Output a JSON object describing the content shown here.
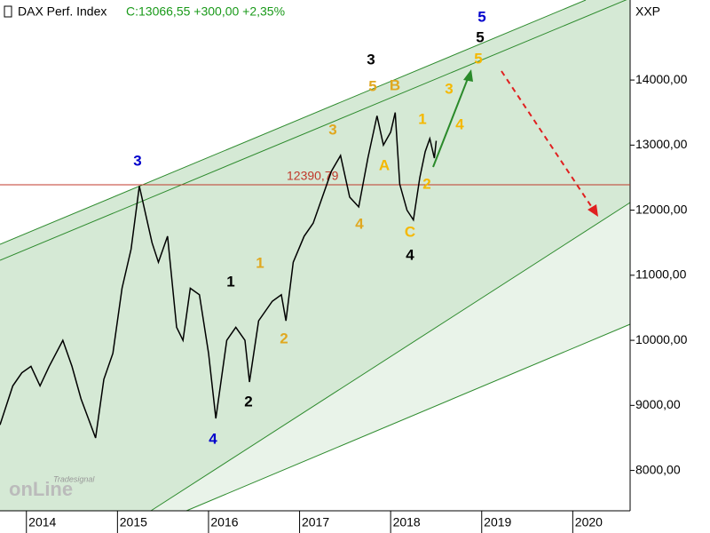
{
  "chart_data": {
    "type": "line",
    "title": "DAX Perf. Index",
    "subtitle": "C:13066,55 +300,00 +2,35%",
    "y_axis_label": "XXP",
    "watermark": [
      "Tradesignal",
      "onLine"
    ],
    "series": [
      {
        "name": "DAX Perf. Index",
        "color": "#000000",
        "x": [
          2013.71,
          2013.85,
          2013.95,
          2014.05,
          2014.15,
          2014.25,
          2014.4,
          2014.5,
          2014.6,
          2014.76,
          2014.85,
          2014.95,
          2015.05,
          2015.15,
          2015.24,
          2015.38,
          2015.45,
          2015.55,
          2015.65,
          2015.72,
          2015.8,
          2015.9,
          2016.0,
          2016.08,
          2016.2,
          2016.3,
          2016.4,
          2016.45,
          2016.55,
          2016.7,
          2016.8,
          2016.85,
          2016.93,
          2017.05,
          2017.15,
          2017.25,
          2017.35,
          2017.45,
          2017.55,
          2017.65,
          2017.75,
          2017.85,
          2017.92,
          2018.0,
          2018.05,
          2018.1,
          2018.18,
          2018.25,
          2018.32,
          2018.38,
          2018.43,
          2018.48,
          2018.5
        ],
        "values": [
          8700,
          9300,
          9500,
          9600,
          9300,
          9600,
          10000,
          9600,
          9100,
          8500,
          9400,
          9800,
          10800,
          11400,
          12370,
          11500,
          11200,
          11600,
          10200,
          10000,
          10800,
          10700,
          9800,
          8800,
          10000,
          10200,
          10000,
          9360,
          10300,
          10600,
          10700,
          10300,
          11200,
          11600,
          11800,
          12200,
          12600,
          12840,
          12200,
          12050,
          12800,
          13450,
          13000,
          13200,
          13500,
          12400,
          12000,
          11850,
          12500,
          12900,
          13100,
          12800,
          13066.55
        ]
      }
    ],
    "hline": {
      "value": 12390.79,
      "label": "12390,79",
      "color": "#c0392b"
    },
    "annotations": [
      {
        "text": "3",
        "color": "#0000cc"
      },
      {
        "text": "1",
        "color": "#000000"
      },
      {
        "text": "2",
        "color": "#000000"
      },
      {
        "text": "4",
        "color": "#0000cc"
      },
      {
        "text": "1",
        "color": "#e0a820"
      },
      {
        "text": "2",
        "color": "#e0a820"
      },
      {
        "text": "3",
        "color": "#e0a820"
      },
      {
        "text": "4",
        "color": "#e0a820"
      },
      {
        "text": "5",
        "color": "#e0a820"
      },
      {
        "text": "B",
        "color": "#e0a820"
      },
      {
        "text": "A",
        "color": "#f5b800"
      },
      {
        "text": "3",
        "color": "#000000"
      },
      {
        "text": "C",
        "color": "#f5b800"
      },
      {
        "text": "4",
        "color": "#000000"
      },
      {
        "text": "1",
        "color": "#f5b800"
      },
      {
        "text": "2",
        "color": "#f5b800"
      },
      {
        "text": "3",
        "color": "#f5b800"
      },
      {
        "text": "4",
        "color": "#f5b800"
      },
      {
        "text": "5",
        "color": "#f5b800"
      },
      {
        "text": "5",
        "color": "#000000"
      },
      {
        "text": "5",
        "color": "#0000cc"
      }
    ],
    "xlim": [
      2013.71,
      2020.63
    ],
    "xticks": [
      2014,
      2015,
      2016,
      2017,
      2018,
      2019,
      2020
    ],
    "ylim": [
      7380,
      15230
    ],
    "yticks": [
      {
        "value": 8000,
        "label": "8000,00"
      },
      {
        "value": 9000,
        "label": "9000,00"
      },
      {
        "value": 10000,
        "label": "10000,00"
      },
      {
        "value": 11000,
        "label": "11000,00"
      },
      {
        "value": 12000,
        "label": "12000,00"
      },
      {
        "value": 13000,
        "label": "13000,00"
      },
      {
        "value": 14000,
        "label": "14000,00"
      }
    ]
  }
}
